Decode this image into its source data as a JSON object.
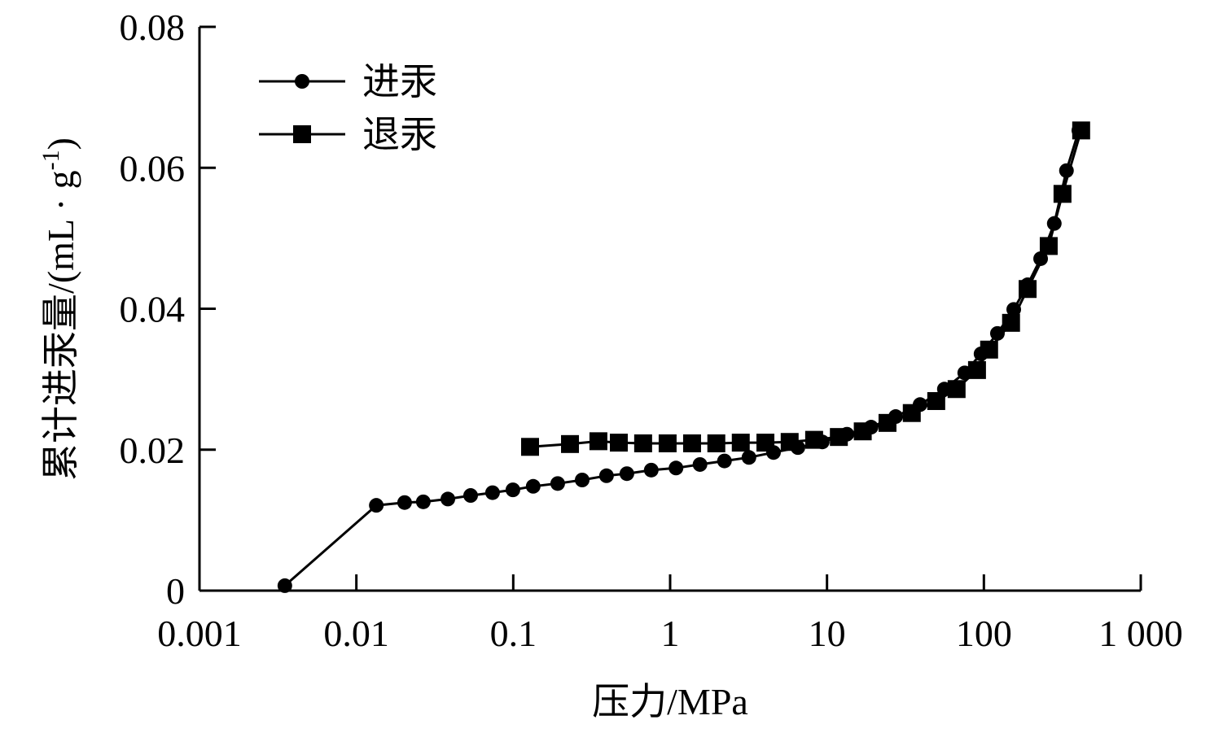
{
  "chart_data": {
    "type": "line",
    "xscale": "log",
    "xlim": [
      0.001,
      1000
    ],
    "ylim": [
      0,
      0.08
    ],
    "xlabel": "压力/MPa",
    "ylabel": {
      "main": "累计进汞量/(mL · g",
      "sup": "-1",
      "end": ")"
    },
    "xticks": [
      0.001,
      0.01,
      0.1,
      1,
      10,
      100,
      1000
    ],
    "xtick_labels": [
      "0.001",
      "0.01",
      "0.1",
      "1",
      "10",
      "100",
      "1 000"
    ],
    "yticks": [
      0,
      0.02,
      0.04,
      0.06,
      0.08
    ],
    "ytick_labels": [
      "0",
      "0.02",
      "0.04",
      "0.06",
      "0.08"
    ],
    "grid": false,
    "legend_position": "top-left",
    "series": [
      {
        "name": "进汞",
        "marker": "circle",
        "color": "#000000",
        "x": [
          0.0035,
          0.0134,
          0.0203,
          0.0267,
          0.0383,
          0.0535,
          0.0738,
          0.0995,
          0.134,
          0.192,
          0.275,
          0.393,
          0.53,
          0.758,
          1.09,
          1.55,
          2.22,
          3.18,
          4.56,
          6.52,
          9.33,
          13.4,
          19.1,
          27.4,
          39.2,
          56.0,
          75.5,
          95.9,
          122,
          155,
          190,
          230,
          281,
          336,
          403
        ],
        "y": [
          0.0007,
          0.0121,
          0.0125,
          0.0126,
          0.013,
          0.0135,
          0.0139,
          0.0143,
          0.0148,
          0.0152,
          0.0157,
          0.0163,
          0.0166,
          0.0171,
          0.0174,
          0.0179,
          0.0184,
          0.0189,
          0.0196,
          0.0203,
          0.0211,
          0.0222,
          0.0232,
          0.0247,
          0.0264,
          0.0286,
          0.0309,
          0.0336,
          0.0365,
          0.0399,
          0.0434,
          0.0471,
          0.0521,
          0.0596,
          0.0653
        ]
      },
      {
        "name": "退汞",
        "marker": "square",
        "color": "#000000",
        "x": [
          417,
          317,
          259,
          190,
          149,
          108,
          90.4,
          67.0,
          49.7,
          34.7,
          24.3,
          16.9,
          11.9,
          8.28,
          5.78,
          4.05,
          2.82,
          1.97,
          1.38,
          0.964,
          0.673,
          0.471,
          0.349,
          0.23,
          0.128
        ],
        "y": [
          0.0653,
          0.0563,
          0.0489,
          0.0428,
          0.038,
          0.0342,
          0.0313,
          0.0286,
          0.0269,
          0.0252,
          0.0238,
          0.0226,
          0.0218,
          0.0214,
          0.0211,
          0.021,
          0.021,
          0.0209,
          0.0209,
          0.0209,
          0.0209,
          0.021,
          0.0212,
          0.0208,
          0.0204
        ]
      }
    ]
  }
}
